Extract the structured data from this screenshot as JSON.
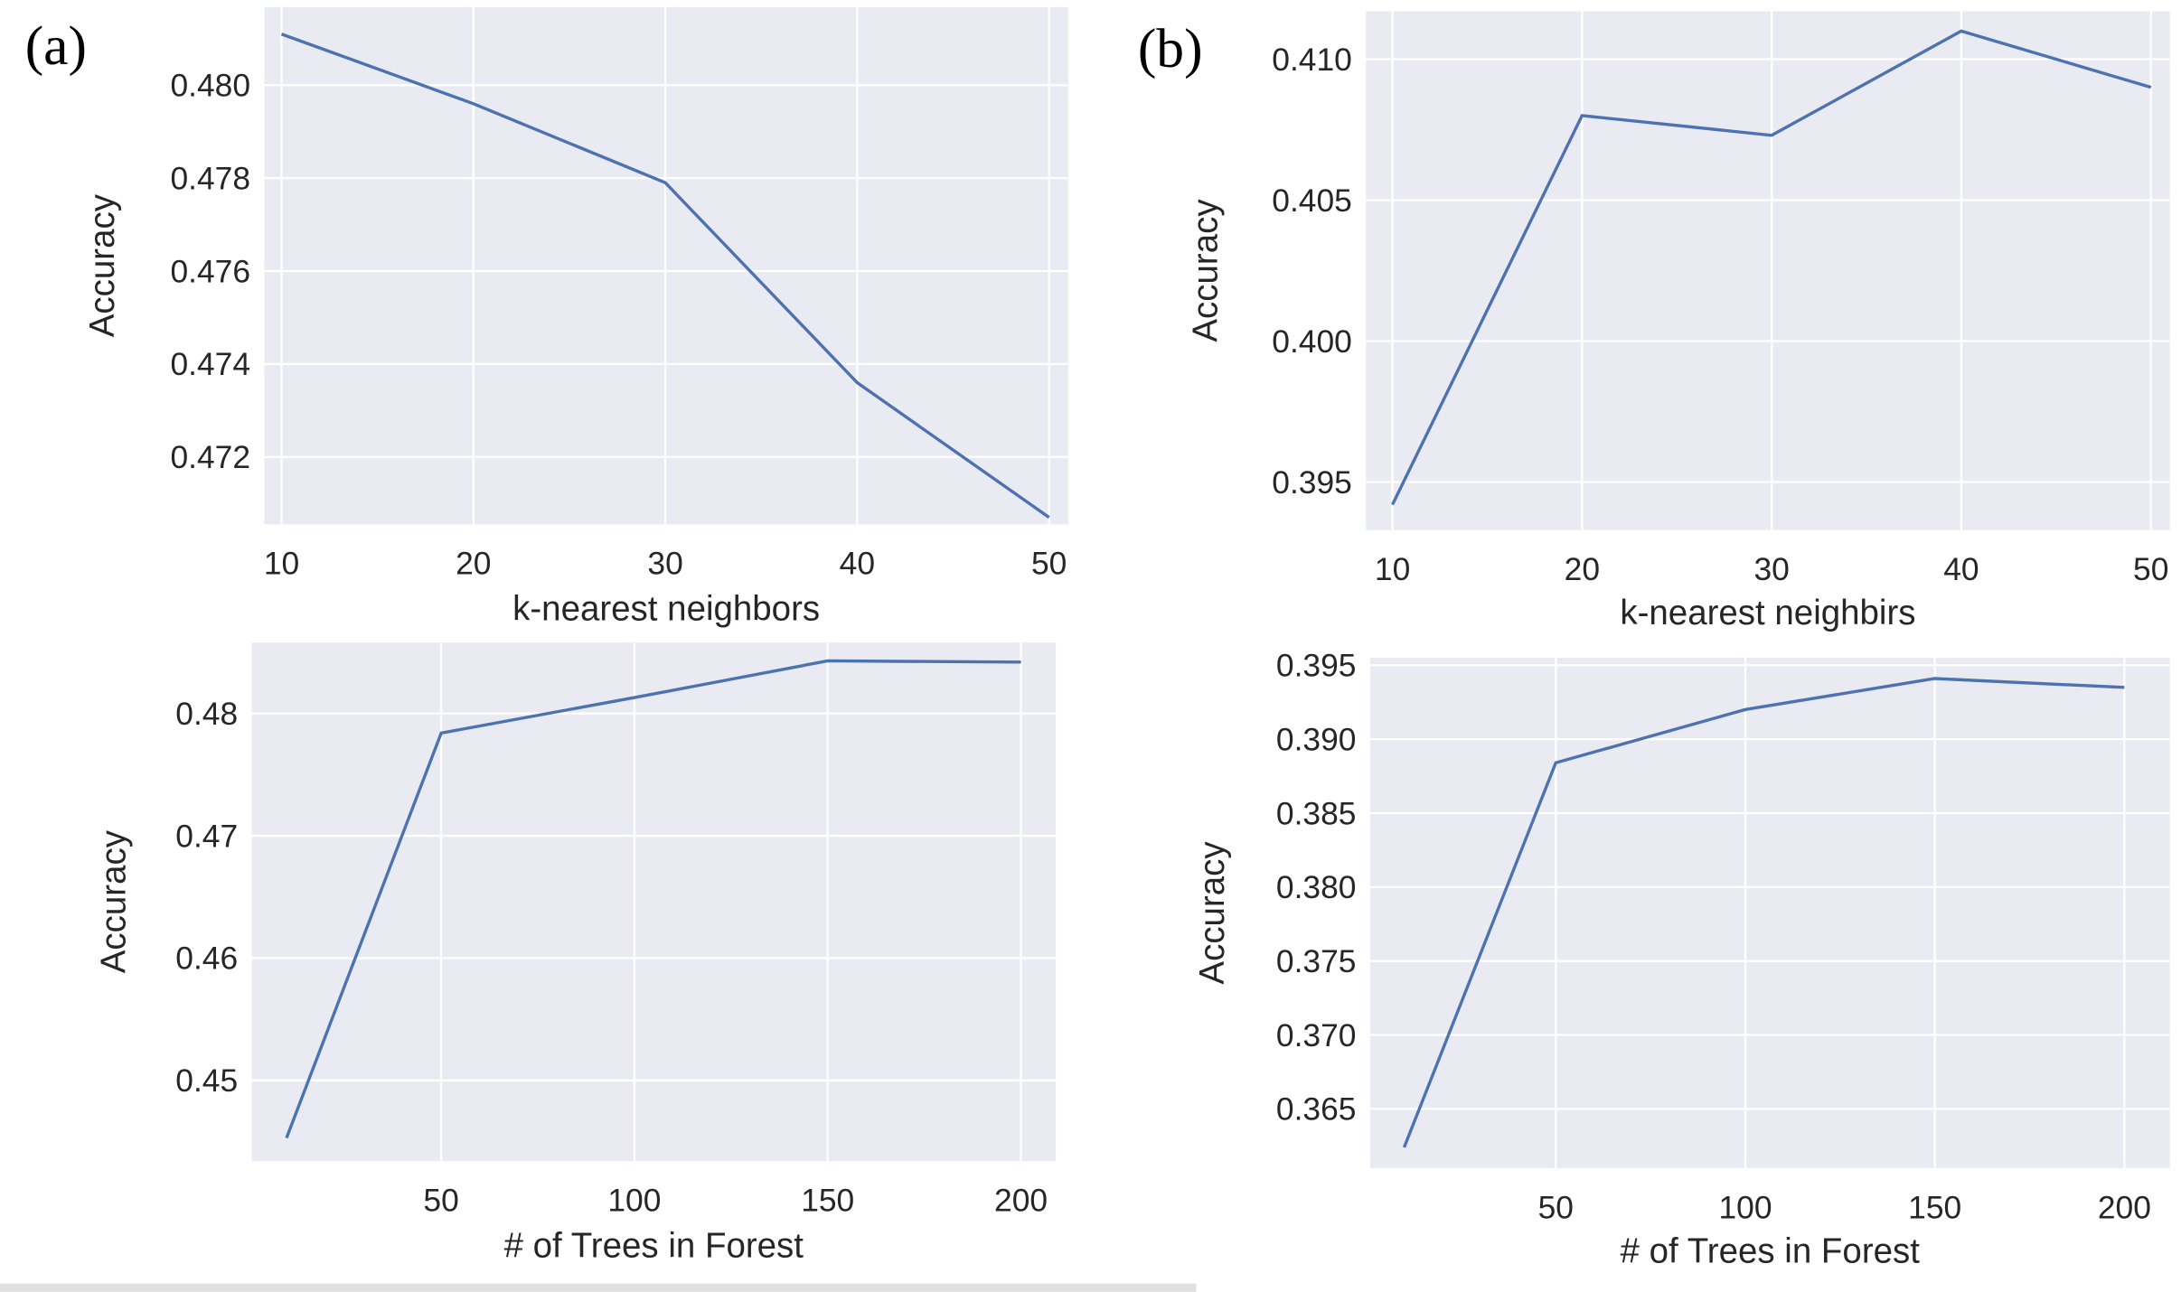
{
  "panel_labels": [
    "(a)",
    "(b)"
  ],
  "colors": {
    "background": "#eaeaf2",
    "grid": "#ffffff",
    "line": "#4c72b0"
  },
  "chart_data": [
    {
      "panel": "(a)",
      "type": "line",
      "xlabel": "k-nearest neighbors",
      "ylabel": "Accuracy",
      "x": [
        10,
        20,
        30,
        40,
        50
      ],
      "values": [
        0.4811,
        0.4796,
        0.4779,
        0.4736,
        0.4707
      ],
      "xticks": [
        10,
        20,
        30,
        40,
        50
      ],
      "xtick_labels": [
        "10",
        "20",
        "30",
        "40",
        "50"
      ],
      "yticks": [
        0.472,
        0.474,
        0.476,
        0.478,
        0.48
      ],
      "ytick_labels": [
        "0.472",
        "0.474",
        "0.476",
        "0.478",
        "0.480"
      ],
      "xlim": [
        9.1,
        51.0
      ],
      "ylim": [
        0.47055,
        0.48168
      ],
      "grid": true
    },
    {
      "panel": "(b)",
      "type": "line",
      "xlabel": "k-nearest neighbirs",
      "ylabel": "Accuracy",
      "x": [
        10,
        20,
        30,
        40,
        50
      ],
      "values": [
        0.3942,
        0.408,
        0.4073,
        0.411,
        0.409
      ],
      "xticks": [
        10,
        20,
        30,
        40,
        50
      ],
      "xtick_labels": [
        "10",
        "20",
        "30",
        "40",
        "50"
      ],
      "yticks": [
        0.395,
        0.4,
        0.405,
        0.41
      ],
      "ytick_labels": [
        "0.395",
        "0.400",
        "0.405",
        "0.410"
      ],
      "xlim": [
        8.6,
        51.0
      ],
      "ylim": [
        0.3933,
        0.4117
      ],
      "grid": true
    },
    {
      "panel": "(a)",
      "type": "line",
      "xlabel": "# of Trees in Forest",
      "ylabel": "Accuracy",
      "x": [
        10,
        50,
        100,
        150,
        200
      ],
      "values": [
        0.4453,
        0.4784,
        0.4813,
        0.4843,
        0.4842
      ],
      "xticks": [
        50,
        100,
        150,
        200
      ],
      "xtick_labels": [
        "50",
        "100",
        "150",
        "200"
      ],
      "yticks": [
        0.45,
        0.46,
        0.47,
        0.48
      ],
      "ytick_labels": [
        "0.45",
        "0.46",
        "0.47",
        "0.48"
      ],
      "xlim": [
        1.0,
        209.0
      ],
      "ylim": [
        0.4434,
        0.4858
      ],
      "grid": true
    },
    {
      "panel": "(b)",
      "type": "line",
      "xlabel": "# of Trees in Forest",
      "ylabel": "Accuracy",
      "x": [
        10,
        50,
        100,
        150,
        200
      ],
      "values": [
        0.3624,
        0.3884,
        0.392,
        0.3941,
        0.3935
      ],
      "xticks": [
        50,
        100,
        150,
        200
      ],
      "xtick_labels": [
        "50",
        "100",
        "150",
        "200"
      ],
      "yticks": [
        0.365,
        0.37,
        0.375,
        0.38,
        0.385,
        0.39,
        0.395
      ],
      "ytick_labels": [
        "0.365",
        "0.370",
        "0.375",
        "0.380",
        "0.385",
        "0.390",
        "0.395"
      ],
      "xlim": [
        1.0,
        212.0
      ],
      "ylim": [
        0.361,
        0.3955
      ],
      "grid": true
    }
  ]
}
